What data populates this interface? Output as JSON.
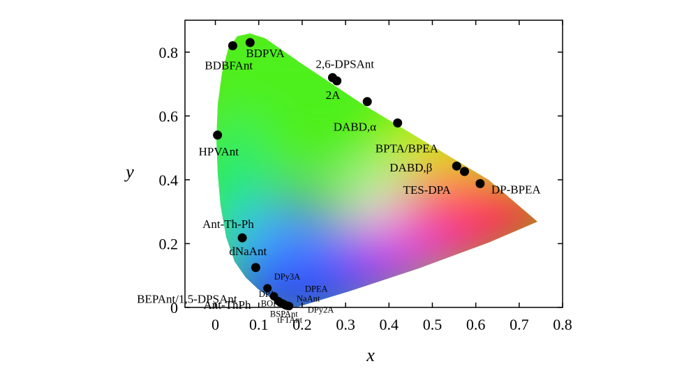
{
  "chart_data": {
    "type": "scatter",
    "title": "",
    "xlabel": "x",
    "ylabel": "y",
    "xlim": [
      -0.07,
      0.8
    ],
    "ylim": [
      0,
      0.9
    ],
    "x_ticks": [
      "0",
      "0.1",
      "0.2",
      "0.3",
      "0.4",
      "0.5",
      "0.6",
      "0.7",
      "0.8"
    ],
    "y_ticks": [
      "0",
      "0.2",
      "0.4",
      "0.6",
      "0.8"
    ],
    "background": "CIE 1931 chromaticity diagram",
    "points": [
      {
        "label": "BDBFAnt",
        "x": 0.04,
        "y": 0.82
      },
      {
        "label": "BDPVA",
        "x": 0.08,
        "y": 0.83
      },
      {
        "label": "2,6-DPSAnt",
        "x": 0.27,
        "y": 0.72
      },
      {
        "label": "2A",
        "x": 0.28,
        "y": 0.71
      },
      {
        "label": "",
        "x": 0.35,
        "y": 0.645
      },
      {
        "label": "DABD,α",
        "x": 0.42,
        "y": 0.578
      },
      {
        "label": "BPTA/BPEA",
        "x": "",
        "y": ""
      },
      {
        "label": "HPVAnt",
        "x": 0.005,
        "y": 0.54
      },
      {
        "label": "DABD,β",
        "x": 0.556,
        "y": 0.443
      },
      {
        "label": "TES-DPA",
        "x": 0.574,
        "y": 0.426
      },
      {
        "label": "DP-BPEA",
        "x": 0.61,
        "y": 0.388
      },
      {
        "label": "Ant-Th-Ph",
        "x": 0.062,
        "y": 0.218
      },
      {
        "label": "dNaAnt",
        "x": 0.093,
        "y": 0.125
      },
      {
        "label": "BEPAnt/1,5-DPSAnt",
        "x": 0.12,
        "y": 0.06
      },
      {
        "label": "Ant-ThPh",
        "x": 0.135,
        "y": 0.035
      },
      {
        "label": "DPy3A",
        "x": 0.145,
        "y": 0.02
      },
      {
        "label": "DPA",
        "x": 0.15,
        "y": 0.015
      },
      {
        "label": "DPEA",
        "x": 0.155,
        "y": 0.012
      },
      {
        "label": "BOPAnt",
        "x": 0.158,
        "y": 0.01
      },
      {
        "label": "NaAnt",
        "x": 0.16,
        "y": 0.008
      },
      {
        "label": "BSPAnt",
        "x": 0.163,
        "y": 0.006
      },
      {
        "label": "DPy2A",
        "x": 0.166,
        "y": 0.005
      },
      {
        "label": "tFTAnt",
        "x": 0.17,
        "y": 0.004
      }
    ]
  }
}
